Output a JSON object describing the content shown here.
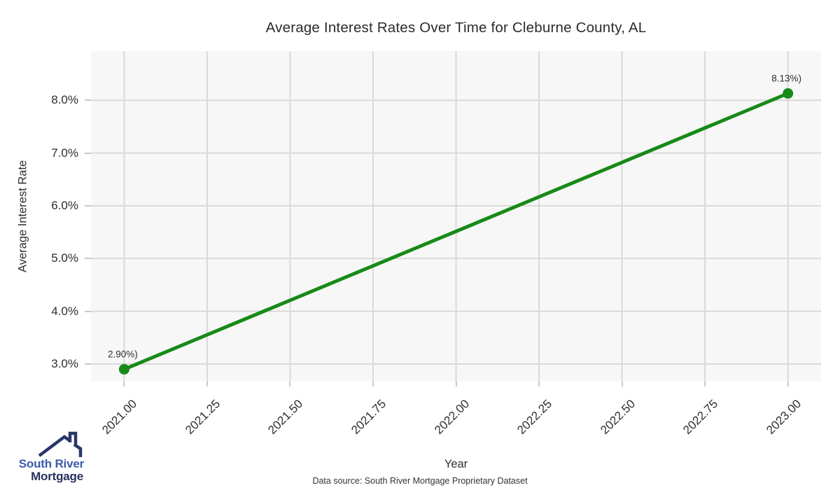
{
  "chart_data": {
    "type": "line",
    "title": "Average Interest Rates Over Time for Cleburne County, AL",
    "xlabel": "Year",
    "ylabel": "Average Interest Rate",
    "x": [
      2021,
      2023
    ],
    "y": [
      2.9,
      8.13
    ],
    "point_labels": [
      "2.90%)",
      "8.13%)"
    ],
    "x_tick_values": [
      2021.0,
      2021.25,
      2021.5,
      2021.75,
      2022.0,
      2022.25,
      2022.5,
      2022.75,
      2023.0
    ],
    "x_tick_labels": [
      "2021.00",
      "2021.25",
      "2021.50",
      "2021.75",
      "2022.00",
      "2022.25",
      "2022.50",
      "2022.75",
      "2023.00"
    ],
    "y_tick_values": [
      3.0,
      4.0,
      5.0,
      6.0,
      7.0,
      8.0
    ],
    "y_tick_labels": [
      "3.0%",
      "4.0%",
      "5.0%",
      "6.0%",
      "7.0%",
      "8.0%"
    ],
    "xlim": [
      2020.9,
      2023.1
    ],
    "ylim": [
      2.668,
      8.933
    ],
    "grid": true,
    "legend": "none",
    "line_color": "#178a17",
    "grid_color": "#d9d9d9",
    "panel_bg": "#f7f7f7"
  },
  "logo": {
    "line1": "South River",
    "line2": "Mortgage",
    "accent_blue": "#3b5aa9",
    "navy": "#28315f"
  },
  "footer": {
    "text": "Data source: South River Mortgage Proprietary Dataset"
  }
}
